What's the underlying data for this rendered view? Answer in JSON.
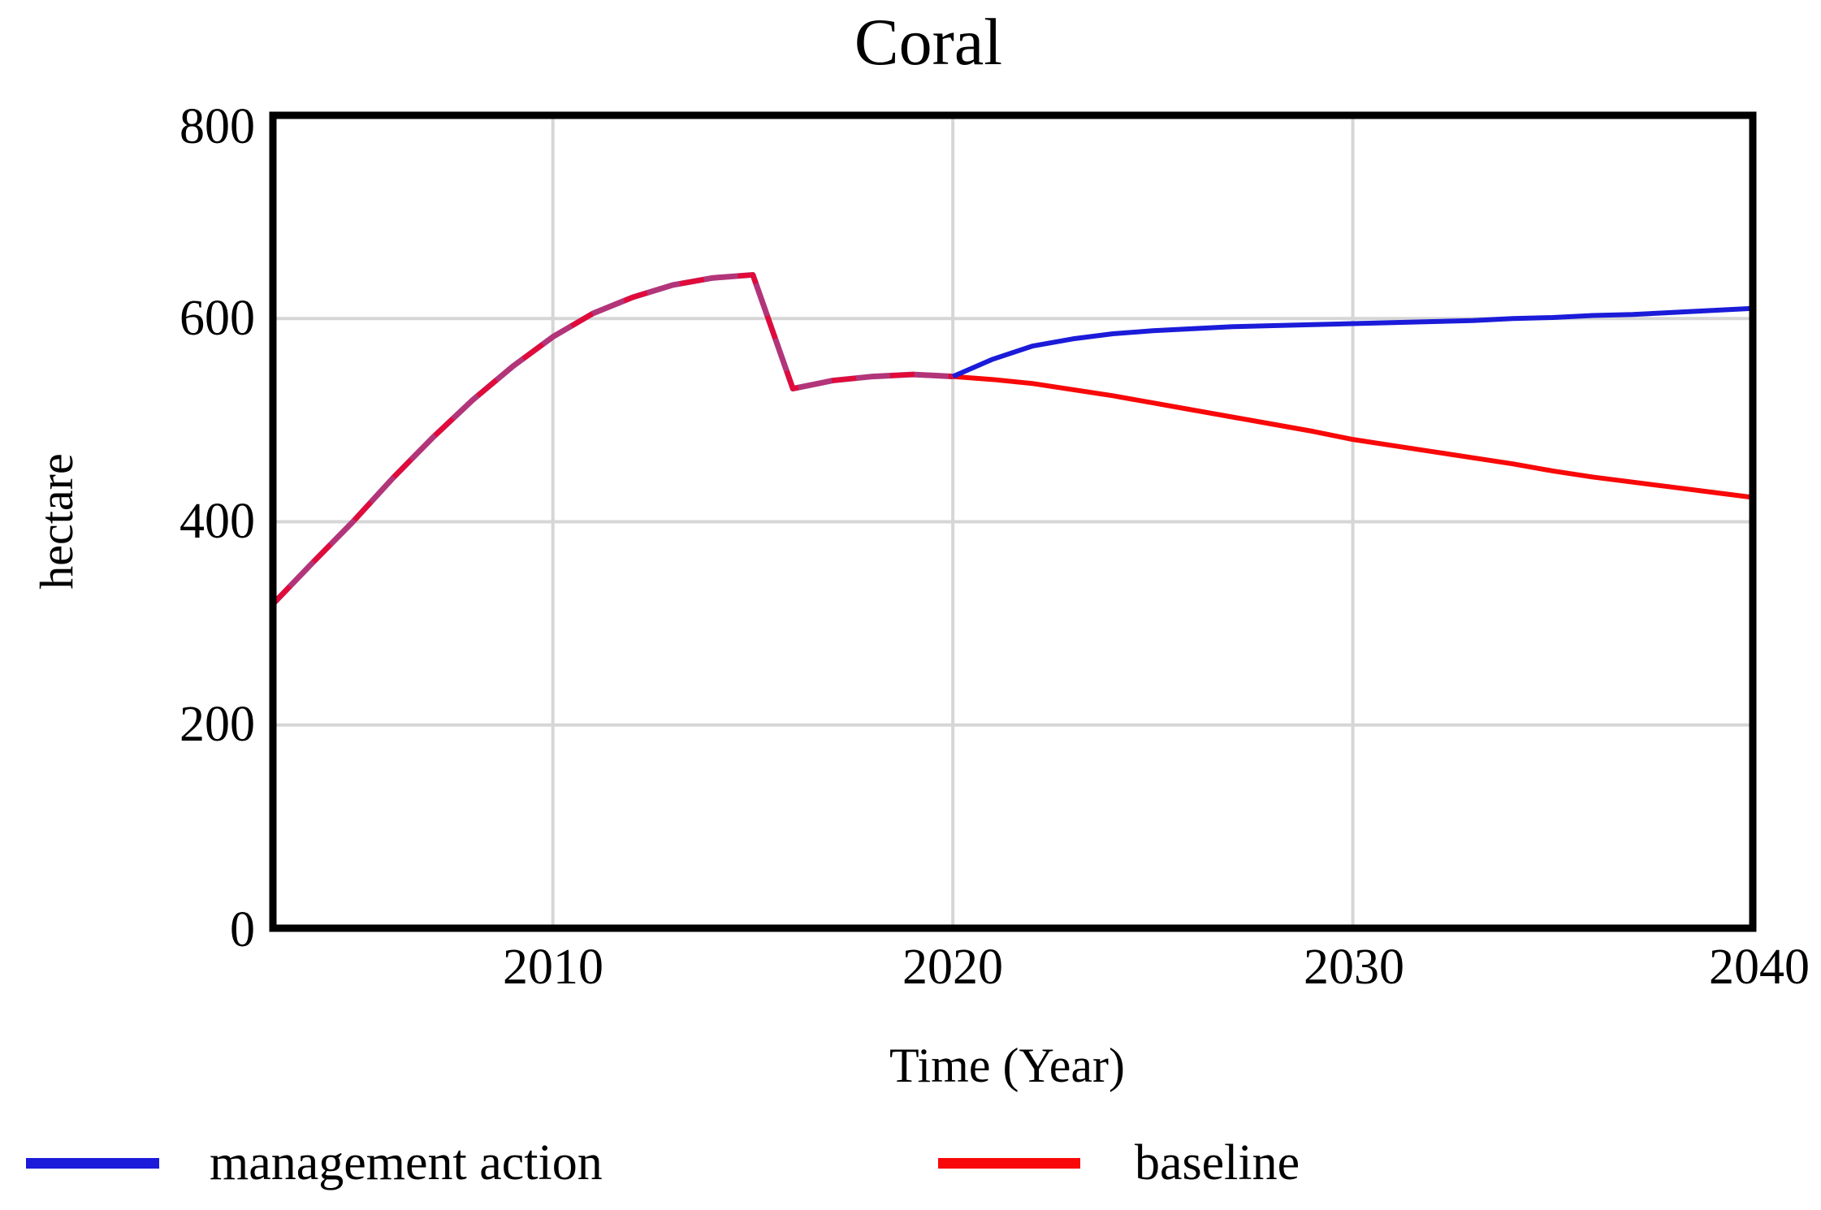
{
  "title": "Coral",
  "y_axis": {
    "unit_label": "hectare",
    "tick_labels": [
      "800",
      "600",
      "400",
      "200",
      "0"
    ]
  },
  "x_axis": {
    "title": "Time (Year)",
    "tick_labels": [
      "2010",
      "2020",
      "2030",
      "2040"
    ]
  },
  "legend": [
    {
      "label": "management action",
      "color": "#1b1bd9"
    },
    {
      "label": "baseline",
      "color": "#f80808"
    }
  ],
  "colors": {
    "background": "#ffffff",
    "plot_border": "#000000",
    "gridline": "#d6d6d6",
    "series_blue": "#1b1bd9",
    "series_red": "#f80808",
    "overlap_blend": "#b2357a",
    "overlap_dash": "#e20a38"
  },
  "chart_data": {
    "type": "line",
    "title": "Coral",
    "xlabel": "Time (Year)",
    "ylabel": "hectare",
    "xlim": [
      2003,
      2040
    ],
    "ylim": [
      0,
      800
    ],
    "xticks": [
      2010,
      2020,
      2030,
      2040
    ],
    "yticks": [
      0,
      200,
      400,
      600,
      800
    ],
    "grid": true,
    "legend_position": "bottom",
    "overlap_note": "Both series share identical values from 2003 to 2020 (rendered as one blended red/blue line); they diverge after 2020.",
    "x": [
      2003,
      2004,
      2005,
      2006,
      2007,
      2008,
      2009,
      2010,
      2011,
      2012,
      2013,
      2014,
      2015,
      2016,
      2017,
      2018,
      2019,
      2020,
      2021,
      2022,
      2023,
      2024,
      2025,
      2026,
      2027,
      2028,
      2029,
      2030,
      2031,
      2032,
      2033,
      2034,
      2035,
      2036,
      2037,
      2038,
      2039,
      2040
    ],
    "series": [
      {
        "name": "management action",
        "color": "#1b1bd9",
        "values": [
          319,
          360,
          400,
          443,
          483,
          520,
          553,
          582,
          605,
          621,
          633,
          640,
          643,
          531,
          539,
          543,
          545,
          543,
          560,
          573,
          580,
          585,
          588,
          590,
          592,
          593,
          594,
          595,
          596,
          597,
          598,
          600,
          601,
          603,
          604,
          606,
          608,
          610
        ]
      },
      {
        "name": "baseline",
        "color": "#f80808",
        "values": [
          319,
          360,
          400,
          443,
          483,
          520,
          553,
          582,
          605,
          621,
          633,
          640,
          643,
          531,
          539,
          543,
          545,
          543,
          540,
          536,
          530,
          524,
          517,
          510,
          503,
          496,
          489,
          481,
          475,
          469,
          463,
          457,
          450,
          444,
          439,
          434,
          429,
          424
        ]
      }
    ]
  }
}
